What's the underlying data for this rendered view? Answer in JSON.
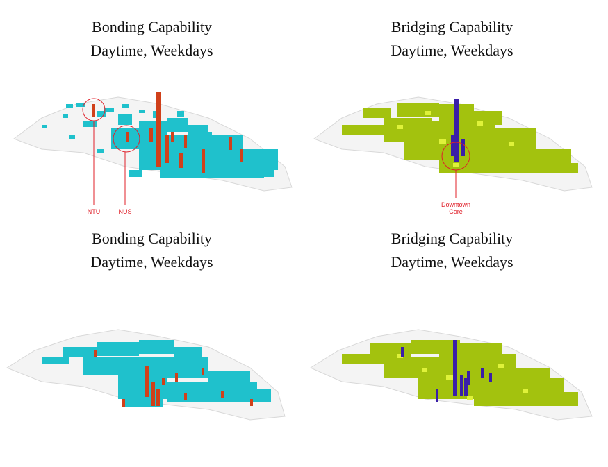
{
  "panels": [
    {
      "title": "Bonding Capability",
      "subtitle": "Daytime, Weekdays",
      "type": "bonding",
      "annotations": [
        "NTU",
        "NUS"
      ]
    },
    {
      "title": "Bridging Capability",
      "subtitle": "Daytime, Weekdays",
      "type": "bridging",
      "annotations": [
        "Downtown",
        "Core"
      ]
    },
    {
      "title": "Bonding Capability",
      "subtitle": "Daytime, Weekdays",
      "type": "bonding",
      "annotations": []
    },
    {
      "title": "Bridging Capability",
      "subtitle": "Daytime, Weekdays",
      "type": "bridging",
      "annotations": []
    }
  ],
  "colors": {
    "bonding_surface": "#1fc1cc",
    "bonding_bar": "#d0401a",
    "bridging_surface": "#a3c20e",
    "bridging_highlight": "#dff23a",
    "bridging_bar": "#3a1fa8",
    "annotation": "#e0202a",
    "outline": "#d8d8d8"
  }
}
